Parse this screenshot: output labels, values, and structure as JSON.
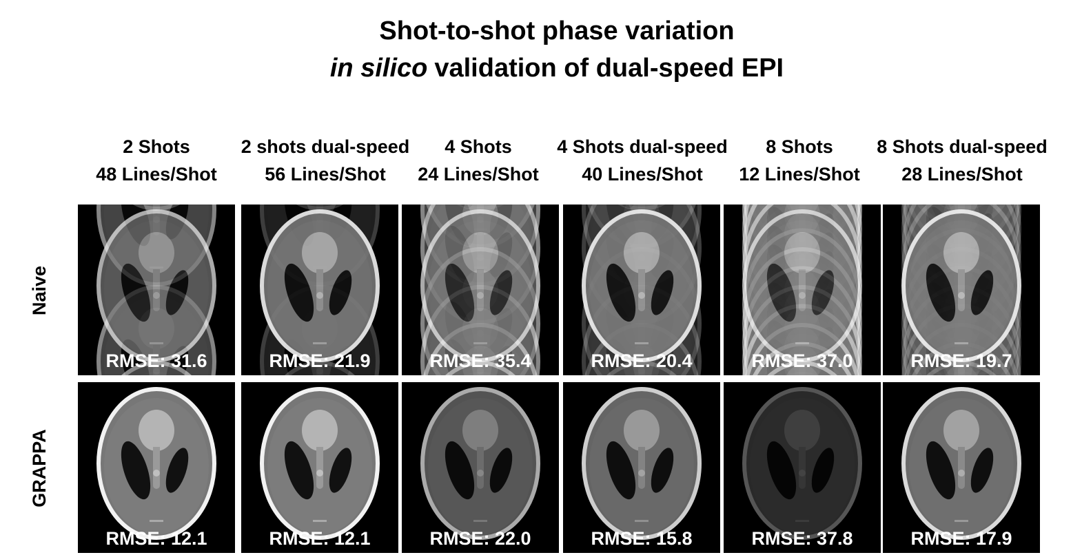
{
  "title": {
    "line1": "Shot-to-shot phase variation",
    "line2_italic": "in silico",
    "line2_rest": "validation of dual-speed EPI"
  },
  "columns": [
    {
      "line1": "2 Shots",
      "line2": "48 Lines/Shot"
    },
    {
      "line1": "2 shots dual-speed",
      "line2": "56 Lines/Shot"
    },
    {
      "line1": "4 Shots",
      "line2": "24 Lines/Shot"
    },
    {
      "line1": "4 Shots dual-speed",
      "line2": "40 Lines/Shot"
    },
    {
      "line1": "8 Shots",
      "line2": "12 Lines/Shot"
    },
    {
      "line1": "8 Shots dual-speed",
      "line2": "28 Lines/Shot"
    }
  ],
  "rows": [
    {
      "label": "Naive",
      "rmse": [
        "RMSE: 31.6",
        "RMSE: 21.9",
        "RMSE: 35.4",
        "RMSE: 20.4",
        "RMSE: 37.0",
        "RMSE: 19.7"
      ]
    },
    {
      "label": "GRAPPA",
      "rmse": [
        "RMSE: 12.1",
        "RMSE: 12.1",
        "RMSE: 22.0",
        "RMSE: 15.8",
        "RMSE: 37.8",
        "RMSE: 17.9"
      ]
    }
  ]
}
